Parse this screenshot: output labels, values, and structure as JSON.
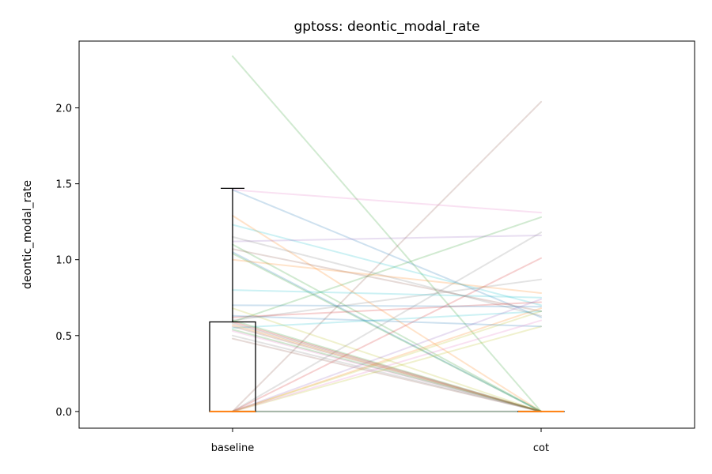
{
  "chart_data": {
    "type": "line",
    "title": "gptoss: deontic_modal_rate",
    "xlabel": "",
    "ylabel": "deontic_modal_rate",
    "categories": [
      "baseline",
      "cot"
    ],
    "ylim": [
      -0.11,
      2.44
    ],
    "yticks": [
      0.0,
      0.5,
      1.0,
      1.5,
      2.0
    ],
    "grid": false,
    "legend": "none",
    "paired_lines": [
      {
        "color": "#2ca02c",
        "values": [
          2.34,
          0.0
        ]
      },
      {
        "color": "#8c564b",
        "values": [
          0.0,
          2.04
        ]
      },
      {
        "color": "#e377c2",
        "values": [
          1.46,
          1.31
        ]
      },
      {
        "color": "#1f77b4",
        "values": [
          1.46,
          0.62
        ]
      },
      {
        "color": "#2ca02c",
        "values": [
          0.59,
          1.28
        ]
      },
      {
        "color": "#ff7f0e",
        "values": [
          1.29,
          0.0
        ]
      },
      {
        "color": "#17becf",
        "values": [
          1.23,
          0.7
        ]
      },
      {
        "color": "#7f7f7f",
        "values": [
          0.0,
          1.18
        ]
      },
      {
        "color": "#9467bd",
        "values": [
          1.12,
          1.16
        ]
      },
      {
        "color": "#7f7f7f",
        "values": [
          1.15,
          0.63
        ]
      },
      {
        "color": "#2ca02c",
        "values": [
          1.1,
          0.0
        ]
      },
      {
        "color": "#8c564b",
        "values": [
          1.07,
          0.66
        ]
      },
      {
        "color": "#1f77b4",
        "values": [
          1.05,
          0.0
        ]
      },
      {
        "color": "#2ca02c",
        "values": [
          1.04,
          0.0
        ]
      },
      {
        "color": "#d62728",
        "values": [
          0.0,
          1.01
        ]
      },
      {
        "color": "#ff7f0e",
        "values": [
          1.0,
          0.78
        ]
      },
      {
        "color": "#7f7f7f",
        "values": [
          0.6,
          0.87
        ]
      },
      {
        "color": "#17becf",
        "values": [
          0.8,
          0.75
        ]
      },
      {
        "color": "#bcbd22",
        "values": [
          0.68,
          0.0
        ]
      },
      {
        "color": "#d62728",
        "values": [
          0.62,
          0.72
        ]
      },
      {
        "color": "#1f77b4",
        "values": [
          0.7,
          0.69
        ]
      },
      {
        "color": "#ff7f0e",
        "values": [
          0.0,
          0.68
        ]
      },
      {
        "color": "#bcbd22",
        "values": [
          0.0,
          0.66
        ]
      },
      {
        "color": "#17becf",
        "values": [
          0.55,
          0.66
        ]
      },
      {
        "color": "#8c564b",
        "values": [
          0.48,
          0.0
        ]
      },
      {
        "color": "#7f7f7f",
        "values": [
          0.5,
          0.0
        ]
      },
      {
        "color": "#e377c2",
        "values": [
          0.53,
          0.0
        ]
      },
      {
        "color": "#9467bd",
        "values": [
          0.0,
          0.74
        ]
      },
      {
        "color": "#2ca02c",
        "values": [
          0.6,
          0.0
        ]
      },
      {
        "color": "#bcbd22",
        "values": [
          0.0,
          0.56
        ]
      },
      {
        "color": "#1f77b4",
        "values": [
          0.63,
          0.56
        ]
      },
      {
        "color": "#d62728",
        "values": [
          0.59,
          0.0
        ]
      },
      {
        "color": "#e377c2",
        "values": [
          0.0,
          0.6
        ]
      },
      {
        "color": "#ff7f0e",
        "values": [
          0.57,
          0.0
        ]
      },
      {
        "color": "#7f7f7f",
        "values": [
          0.58,
          0.0
        ]
      },
      {
        "color": "#8c564b",
        "values": [
          0.56,
          0.0
        ]
      },
      {
        "color": "#2ca02c",
        "values": [
          0.54,
          0.0
        ]
      },
      {
        "color": "#d62728",
        "values": [
          0.0,
          0.0
        ]
      },
      {
        "color": "#1f77b4",
        "values": [
          0.0,
          0.0
        ]
      },
      {
        "color": "#2ca02c",
        "values": [
          0.0,
          0.0
        ]
      }
    ],
    "boxplots": [
      {
        "category": "baseline",
        "q1": 0.0,
        "median": 0.0,
        "q3": 0.59,
        "whisker_low": 0.0,
        "whisker_high": 1.47
      },
      {
        "category": "cot",
        "q1": 0.0,
        "median": 0.0,
        "q3": 0.0,
        "whisker_low": 0.0,
        "whisker_high": 0.0
      }
    ],
    "line_alpha": 0.22,
    "box_color": "#000000",
    "median_color": "#ff7f0e"
  }
}
